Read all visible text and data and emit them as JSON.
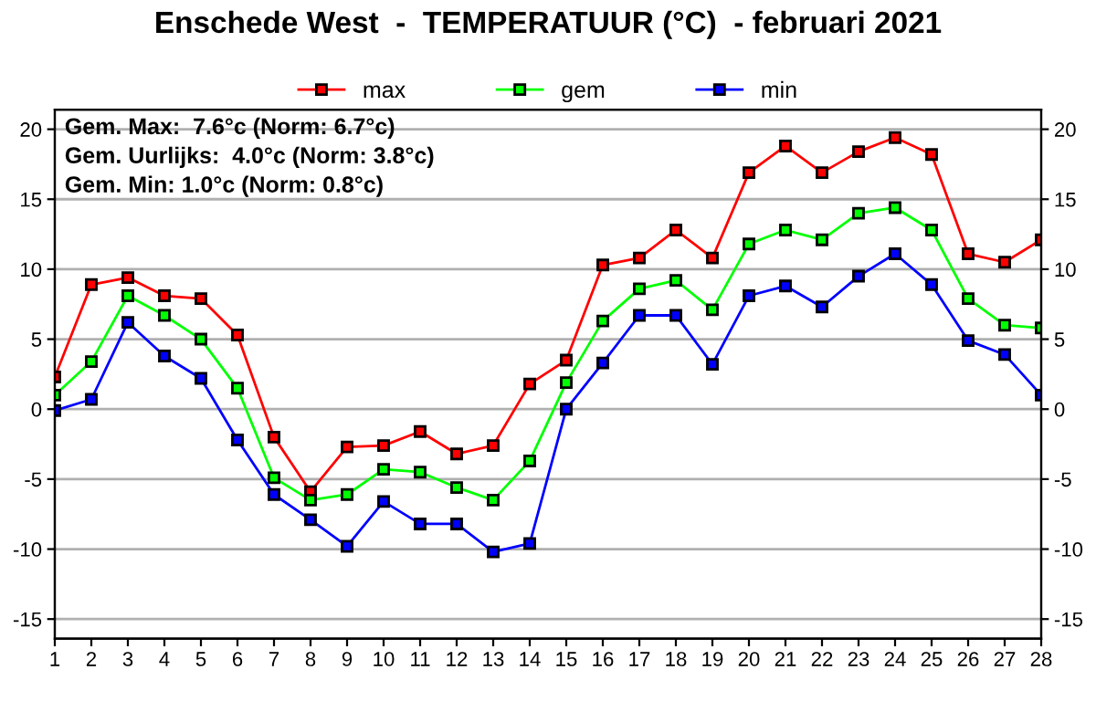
{
  "chart_data": {
    "type": "line",
    "title": "Enschede West  -  TEMPERATUUR (°C)  - februari 2021",
    "x": [
      1,
      2,
      3,
      4,
      5,
      6,
      7,
      8,
      9,
      10,
      11,
      12,
      13,
      14,
      15,
      16,
      17,
      18,
      19,
      20,
      21,
      22,
      23,
      24,
      25,
      26,
      27,
      28
    ],
    "series": [
      {
        "name": "max",
        "color": "#ff0000",
        "values": [
          2.3,
          8.9,
          9.4,
          8.1,
          7.9,
          5.3,
          -2.0,
          -5.9,
          -2.7,
          -2.6,
          -1.6,
          -3.2,
          -2.6,
          1.8,
          3.5,
          10.3,
          10.8,
          12.8,
          10.8,
          16.9,
          18.8,
          16.9,
          18.4,
          19.4,
          18.2,
          11.1,
          10.5,
          12.1
        ]
      },
      {
        "name": "gem",
        "color": "#00ff00",
        "values": [
          1.0,
          3.4,
          8.1,
          6.7,
          5.0,
          1.5,
          -4.9,
          -6.5,
          -6.1,
          -4.3,
          -4.5,
          -5.6,
          -6.5,
          -3.7,
          1.9,
          6.3,
          8.6,
          9.2,
          7.1,
          11.8,
          12.8,
          12.1,
          14.0,
          14.4,
          12.8,
          7.9,
          6.0,
          5.8
        ]
      },
      {
        "name": "min",
        "color": "#0000ff",
        "values": [
          -0.1,
          0.7,
          6.2,
          3.8,
          2.2,
          -2.2,
          -6.1,
          -7.9,
          -9.8,
          -6.6,
          -8.2,
          -8.2,
          -10.2,
          -9.6,
          0.0,
          3.3,
          6.7,
          6.7,
          3.2,
          8.1,
          8.8,
          7.3,
          9.5,
          11.1,
          8.9,
          4.9,
          3.9,
          1.0
        ]
      }
    ],
    "xlim": [
      1,
      28
    ],
    "xticks": [
      1,
      2,
      3,
      4,
      5,
      6,
      7,
      8,
      9,
      10,
      11,
      12,
      13,
      14,
      15,
      16,
      17,
      18,
      19,
      20,
      21,
      22,
      23,
      24,
      25,
      26,
      27,
      28
    ],
    "ylim": [
      -16.4,
      21.4
    ],
    "yticks": [
      -15,
      -10,
      -5,
      0,
      5,
      10,
      15,
      20
    ],
    "y2lim": [
      -16.4,
      21.4
    ],
    "y2ticks": [
      -15,
      -10,
      -5,
      0,
      5,
      10,
      15,
      20
    ],
    "annotations": [
      "Gem. Max:  7.6°c (Norm: 6.7°c)",
      "Gem. Uurlijks:  4.0°c (Norm: 3.8°c)",
      "Gem. Min: 1.0°c (Norm: 0.8°c)"
    ],
    "grid": "y",
    "legend": "top",
    "marker": "square",
    "line_style": "solid"
  }
}
